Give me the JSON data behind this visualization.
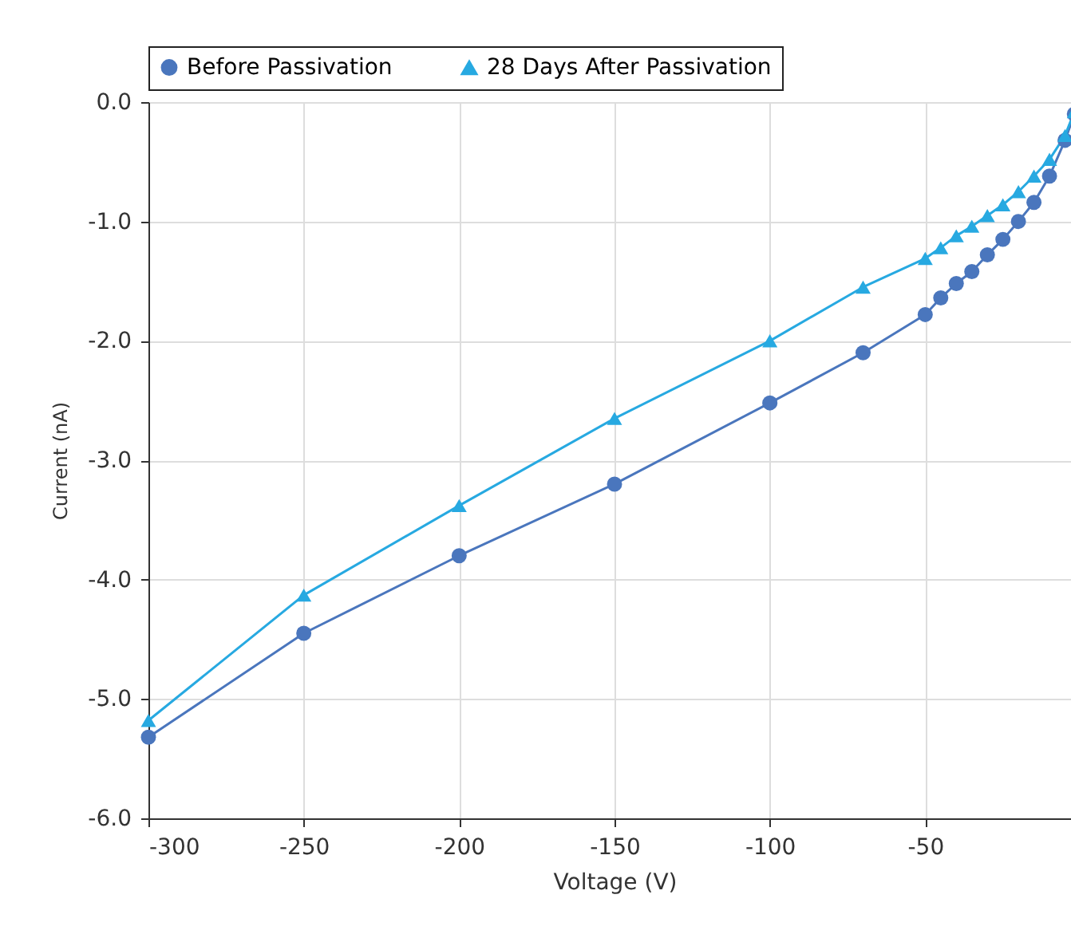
{
  "chart_data": {
    "type": "line",
    "xlabel": "Voltage (V)",
    "ylabel": "Current (nA)",
    "xlim": [
      -300,
      0
    ],
    "xticks": [
      -300,
      -250,
      -200,
      -150,
      -100,
      -50
    ],
    "ylim": [
      -6,
      0
    ],
    "yticks": [
      {
        "value": 0,
        "label": "0.0"
      },
      {
        "value": -1,
        "label": "-1.0"
      },
      {
        "value": -2,
        "label": "-2.0"
      },
      {
        "value": -3,
        "label": "-3.0"
      },
      {
        "value": -4,
        "label": "-4.0"
      },
      {
        "value": -5,
        "label": "-5.0"
      },
      {
        "value": -6,
        "label": "-6.0"
      }
    ],
    "grid": true,
    "legend": "top",
    "x": [
      -300,
      -250,
      -200,
      -150,
      -100,
      -70,
      -50,
      -45,
      -40,
      -35,
      -30,
      -25,
      -20,
      -15,
      -10,
      -5,
      -2
    ],
    "series": [
      {
        "name": "Before Passivation",
        "color": "#4a76bd",
        "marker": "circle",
        "values": [
          -5.32,
          -4.45,
          -3.8,
          -3.2,
          -2.52,
          -2.1,
          -1.78,
          -1.64,
          -1.52,
          -1.42,
          -1.28,
          -1.15,
          -1.0,
          -0.84,
          -0.62,
          -0.32,
          -0.1
        ]
      },
      {
        "name": "28 Days After Passivation",
        "color": "#27a9e1",
        "marker": "triangle",
        "values": [
          -5.18,
          -4.13,
          -3.38,
          -2.65,
          -2.0,
          -1.55,
          -1.31,
          -1.22,
          -1.12,
          -1.04,
          -0.95,
          -0.86,
          -0.75,
          -0.62,
          -0.48,
          -0.28,
          -0.08
        ]
      }
    ]
  }
}
